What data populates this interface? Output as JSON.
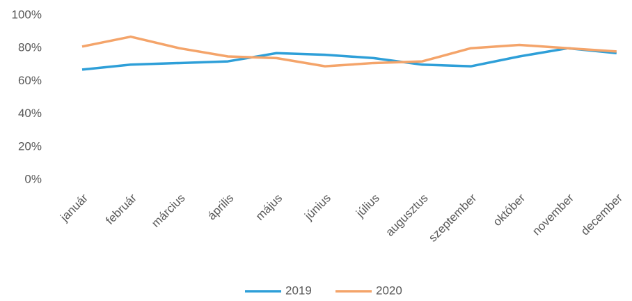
{
  "chart_data": {
    "type": "line",
    "categories": [
      "január",
      "február",
      "március",
      "április",
      "május",
      "június",
      "július",
      "augusztus",
      "szeptember",
      "október",
      "november",
      "december"
    ],
    "series": [
      {
        "name": "2019",
        "color": "#2e9fd8",
        "values": [
          67,
          70,
          71,
          72,
          77,
          76,
          74,
          70,
          69,
          75,
          80,
          77
        ]
      },
      {
        "name": "2020",
        "color": "#f4a46a",
        "values": [
          81,
          87,
          80,
          75,
          74,
          69,
          71,
          72,
          80,
          82,
          80,
          78
        ]
      }
    ],
    "ylim": [
      0,
      100
    ],
    "yticks": [
      {
        "value": 0,
        "label": "0%"
      },
      {
        "value": 20,
        "label": "20%"
      },
      {
        "value": 40,
        "label": "40%"
      },
      {
        "value": 60,
        "label": "60%"
      },
      {
        "value": 80,
        "label": "80%"
      },
      {
        "value": 100,
        "label": "100%"
      }
    ],
    "grid": false,
    "legend": "bottom"
  }
}
